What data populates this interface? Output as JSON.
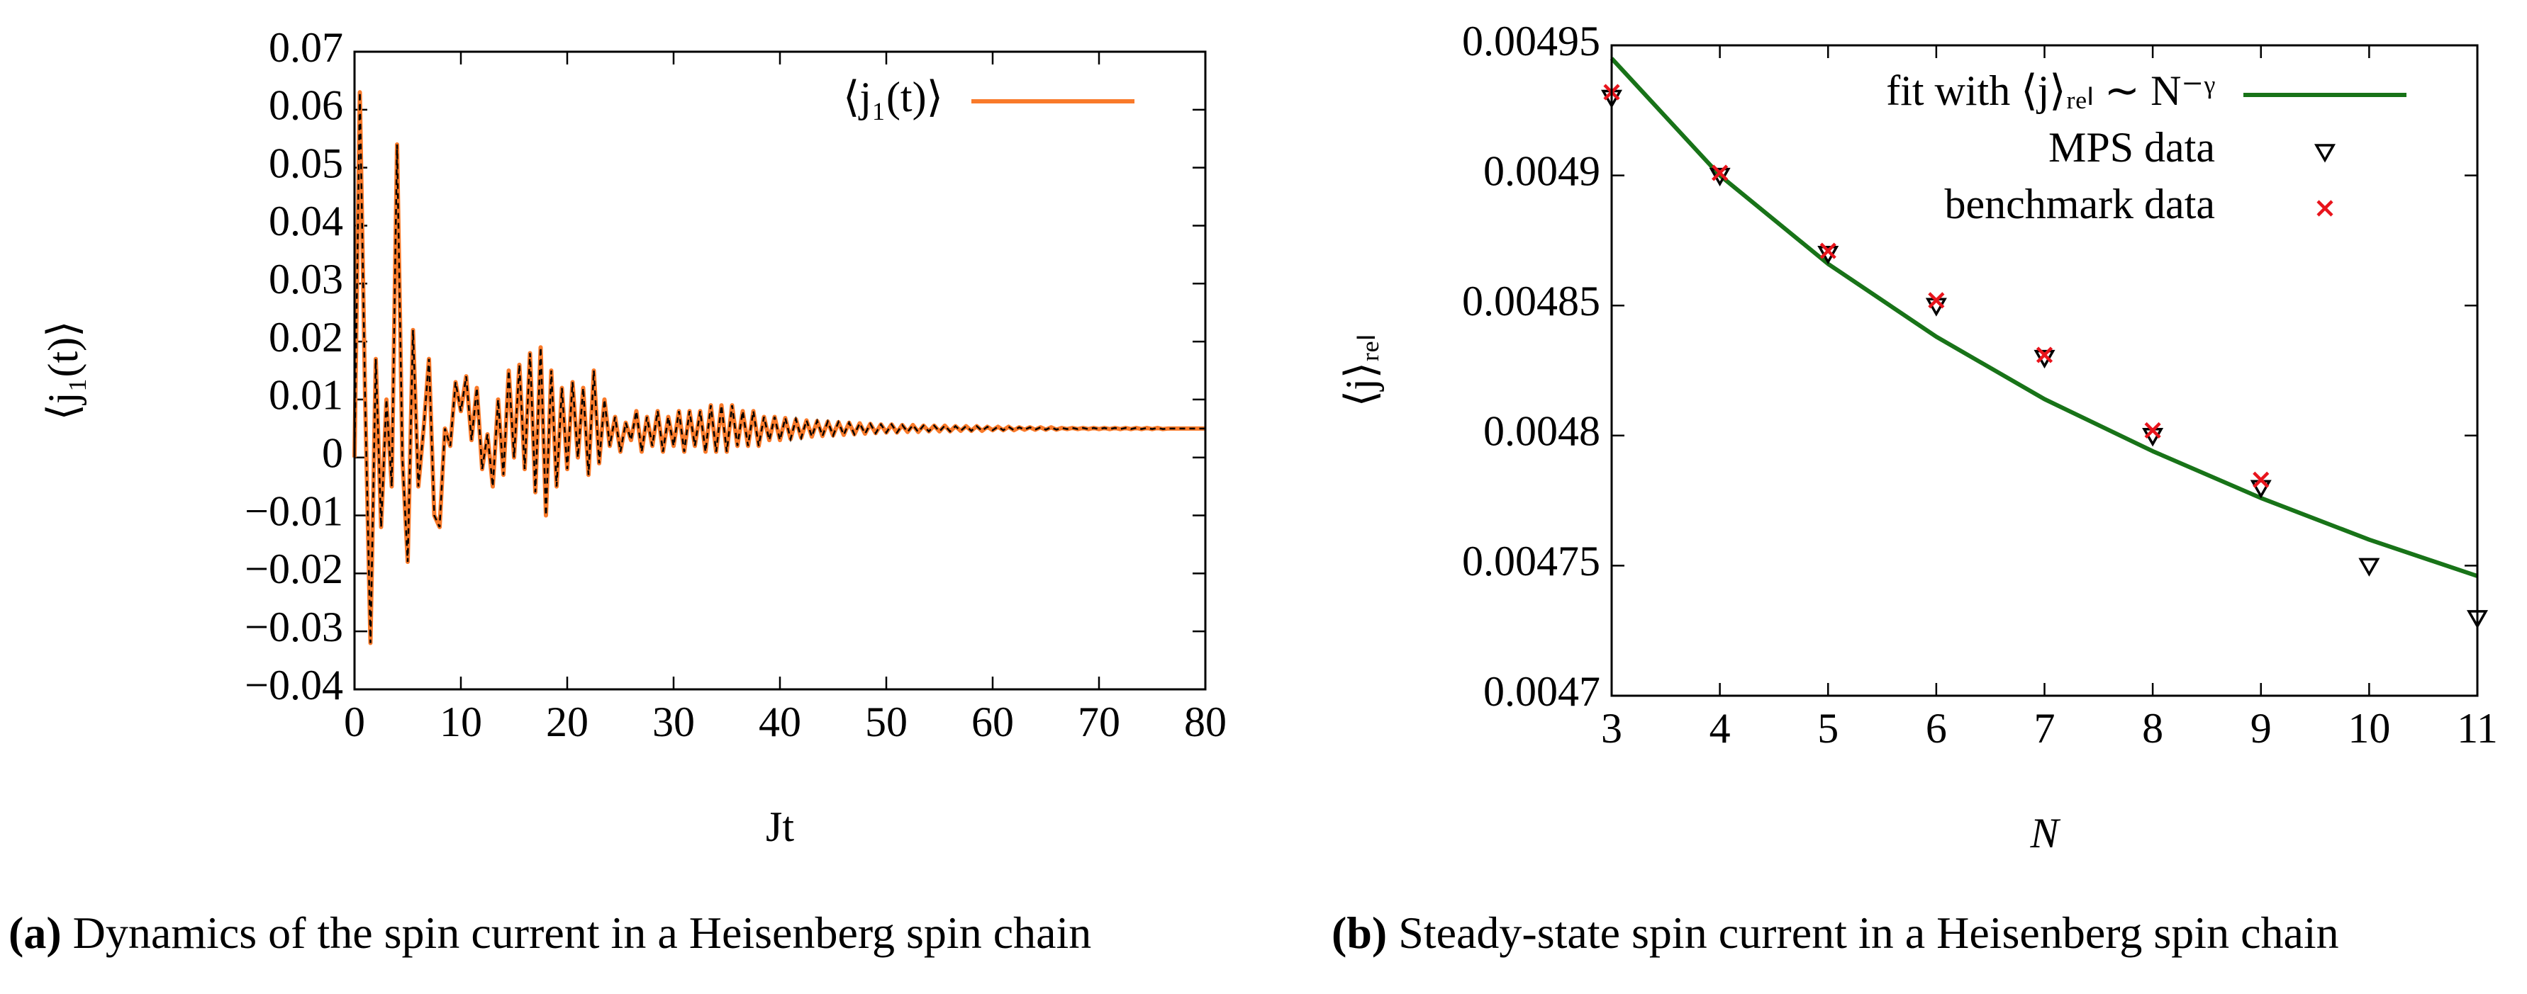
{
  "chart_data": [
    {
      "type": "line",
      "ylabel": "⟨j₁(t)⟩",
      "xlabel": "Jt",
      "caption": {
        "label": "(a)",
        "text": " Dynamics of the spin current in a Heisenberg spin chain"
      },
      "legend": "upper right",
      "xlim": [
        0,
        80
      ],
      "xticks": [
        0,
        10,
        20,
        30,
        40,
        50,
        60,
        70,
        80
      ],
      "ylim": [
        -0.04,
        0.07
      ],
      "yticks": [
        {
          "value": -0.04,
          "label": "−0.04"
        },
        {
          "value": -0.03,
          "label": "−0.03"
        },
        {
          "value": -0.02,
          "label": "−0.02"
        },
        {
          "value": -0.01,
          "label": "−0.01"
        },
        0,
        0.01,
        0.02,
        0.03,
        0.04,
        0.05,
        0.06,
        0.07
      ],
      "x": [
        0,
        0.5,
        1,
        1.5,
        2,
        2.5,
        3,
        3.5,
        4,
        4.5,
        5,
        5.5,
        6,
        6.5,
        7,
        7.5,
        8,
        8.5,
        9,
        9.5,
        10,
        10.5,
        11,
        11.5,
        12,
        12.5,
        13,
        13.5,
        14,
        14.5,
        15,
        15.5,
        16,
        16.5,
        17,
        17.5,
        18,
        18.5,
        19,
        19.5,
        20,
        20.5,
        21,
        21.5,
        22,
        22.5,
        23,
        23.5,
        24,
        24.5,
        25,
        25.5,
        26,
        26.5,
        27,
        27.5,
        28,
        28.5,
        29,
        29.5,
        30,
        30.5,
        31,
        31.5,
        32,
        32.5,
        33,
        33.5,
        34,
        34.5,
        35,
        35.5,
        36,
        36.5,
        37,
        37.5,
        38,
        38.5,
        39,
        39.5,
        40,
        40.5,
        41,
        41.5,
        42,
        42.5,
        43,
        43.5,
        44,
        44.5,
        45,
        45.5,
        46,
        46.5,
        47,
        47.5,
        48,
        48.5,
        49,
        49.5,
        50,
        50.5,
        51,
        51.5,
        52,
        52.5,
        53,
        53.5,
        54,
        54.5,
        55,
        55.5,
        56,
        56.5,
        57,
        57.5,
        58,
        58.5,
        59,
        59.5,
        60,
        60.5,
        61,
        61.5,
        62,
        62.5,
        63,
        63.5,
        64,
        64.5,
        65,
        65.5,
        66,
        66.5,
        67,
        67.5,
        68,
        68.5,
        69,
        69.5,
        70,
        70.5,
        71,
        71.5,
        72,
        72.5,
        73,
        73.5,
        74,
        74.5,
        75,
        75.5,
        76,
        76.5,
        77,
        77.5,
        78,
        78.5,
        79,
        79.5,
        80
      ],
      "series": [
        {
          "name": "⟨j₁(t)⟩",
          "color": "#f97a2a",
          "style": "line",
          "overlay_color": "#000000",
          "values": [
            0,
            0.063,
            0.01,
            -0.032,
            0.017,
            -0.012,
            0.01,
            -0.005,
            0.054,
            0,
            -0.018,
            0.022,
            -0.005,
            0.005,
            0.017,
            -0.01,
            -0.012,
            0.005,
            0.002,
            0.013,
            0.008,
            0.014,
            0.003,
            0.012,
            -0.002,
            0.004,
            -0.005,
            0.01,
            -0.003,
            0.015,
            0,
            0.016,
            -0.002,
            0.018,
            -0.006,
            0.019,
            -0.01,
            0.015,
            -0.005,
            0.012,
            -0.002,
            0.013,
            0,
            0.012,
            -0.003,
            0.015,
            -0.001,
            0.01,
            0.002,
            0.007,
            0.001,
            0.006,
            0.003,
            0.008,
            0.001,
            0.007,
            0.002,
            0.008,
            0.001,
            0.007,
            0.002,
            0.008,
            0.001,
            0.008,
            0.002,
            0.008,
            0.001,
            0.009,
            0.001,
            0.009,
            0.001,
            0.009,
            0.002,
            0.008,
            0.002,
            0.008,
            0.002,
            0.007,
            0.003,
            0.007,
            0.003,
            0.0068,
            0.0032,
            0.0066,
            0.0034,
            0.0064,
            0.0036,
            0.0063,
            0.0037,
            0.0062,
            0.0038,
            0.0061,
            0.0039,
            0.006,
            0.004,
            0.0059,
            0.0041,
            0.0058,
            0.0042,
            0.0057,
            0.0043,
            0.0057,
            0.0043,
            0.0056,
            0.0044,
            0.0056,
            0.0044,
            0.0055,
            0.0045,
            0.0055,
            0.0045,
            0.0055,
            0.0045,
            0.0054,
            0.0046,
            0.0054,
            0.0046,
            0.0054,
            0.0046,
            0.0053,
            0.0047,
            0.0053,
            0.0047,
            0.0053,
            0.0047,
            0.0052,
            0.0048,
            0.0052,
            0.0048,
            0.0052,
            0.0048,
            0.0052,
            0.0048,
            0.0051,
            0.0049,
            0.0051,
            0.0049,
            0.0051,
            0.0049,
            0.0051,
            0.0049,
            0.0051,
            0.0049,
            0.0051,
            0.0049,
            0.0051,
            0.0049,
            0.0051,
            0.0049,
            0.0051,
            0.0049,
            0.0051,
            0.0049,
            0.005,
            0.005,
            0.005,
            0.005,
            0.005,
            0.005,
            0.005,
            0.005
          ]
        }
      ]
    },
    {
      "type": "scatter",
      "ylabel": "⟨j⟩ᵣₑₗ",
      "xlabel": "N",
      "caption": {
        "label": "(b)",
        "text": " Steady-state spin current in a Heisenberg spin chain"
      },
      "legend": "upper right",
      "xlim": [
        3,
        11
      ],
      "xticks": [
        3,
        4,
        5,
        6,
        7,
        8,
        9,
        10,
        11
      ],
      "ylim": [
        0.0047,
        0.00495
      ],
      "yticks": [
        0.0047,
        0.00475,
        0.0048,
        0.00485,
        0.0049,
        0.00495
      ],
      "series": [
        {
          "name": "fit with ⟨j⟩ᵣₑₗ ∼ N⁻ᵞ",
          "color": "#187318",
          "style": "line",
          "x": [
            3,
            4,
            5,
            6,
            7,
            8,
            9,
            10,
            11
          ],
          "values": [
            0.004945,
            0.0049,
            0.004866,
            0.004838,
            0.004814,
            0.004794,
            0.004776,
            0.00476,
            0.004746
          ]
        },
        {
          "name": "MPS data",
          "color": "#000000",
          "style": "triangle",
          "x": [
            3,
            4,
            5,
            6,
            7,
            8,
            9,
            10,
            11
          ],
          "values": [
            0.00493,
            0.0049,
            0.00487,
            0.00485,
            0.00483,
            0.0048,
            0.00478,
            0.00475,
            0.00473
          ]
        },
        {
          "name": "benchmark data",
          "color": "#e8141c",
          "style": "cross",
          "x": [
            3,
            4,
            5,
            6,
            7,
            8,
            9
          ],
          "values": [
            0.004932,
            0.004901,
            0.004871,
            0.004852,
            0.004831,
            0.004802,
            0.004783
          ]
        }
      ]
    }
  ]
}
